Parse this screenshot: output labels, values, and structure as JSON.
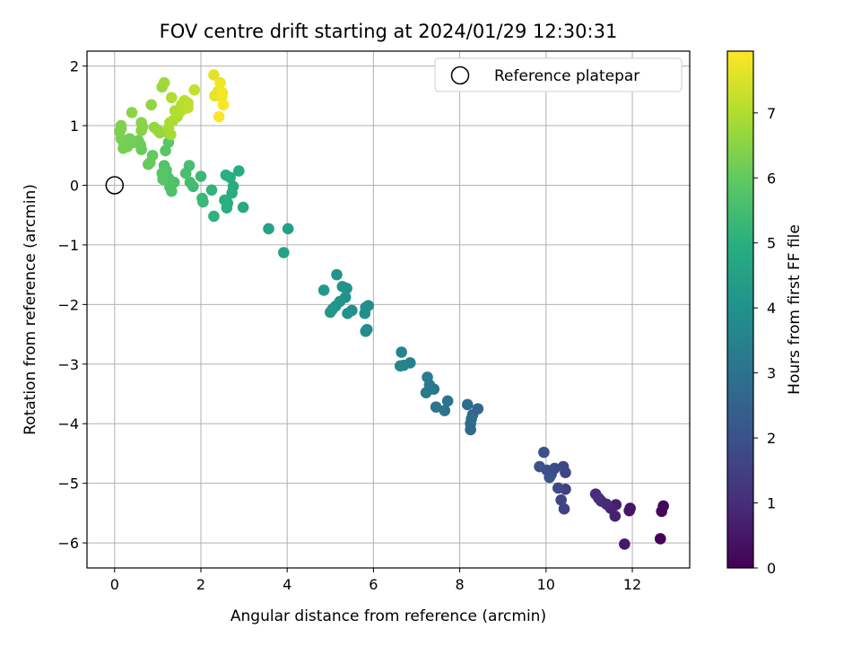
{
  "chart_data": {
    "type": "scatter",
    "title": "FOV centre drift starting at 2024/01/29 12:30:31",
    "xlabel": "Angular distance from reference (arcmin)",
    "ylabel": "Rotation from reference (arcmin)",
    "xlim": [
      -0.64,
      13.33
    ],
    "ylim": [
      -6.42,
      2.25
    ],
    "xticks": [
      0,
      2,
      4,
      6,
      8,
      10,
      12
    ],
    "yticks": [
      -6,
      -5,
      -4,
      -3,
      -2,
      -1,
      0,
      1,
      2
    ],
    "grid": true,
    "legend": {
      "label": "Reference platepar",
      "placement": "top-right",
      "marker": "open-circle"
    },
    "reference": {
      "x": 0,
      "y": 0
    },
    "colorbar": {
      "label": "Hours from first FF file",
      "colormap": "viridis",
      "range": [
        0,
        7.95
      ],
      "ticks": [
        0,
        1,
        2,
        3,
        4,
        5,
        6,
        7
      ]
    },
    "points": [
      {
        "x": 12.65,
        "y": -5.93,
        "c": 0.05
      },
      {
        "x": 12.68,
        "y": -5.47,
        "c": 0.1
      },
      {
        "x": 12.72,
        "y": -5.38,
        "c": 0.15
      },
      {
        "x": 11.95,
        "y": -5.42,
        "c": 0.4
      },
      {
        "x": 11.93,
        "y": -5.46,
        "c": 0.45
      },
      {
        "x": 11.82,
        "y": -6.02,
        "c": 0.55
      },
      {
        "x": 11.62,
        "y": -5.36,
        "c": 0.7
      },
      {
        "x": 11.6,
        "y": -5.55,
        "c": 0.75
      },
      {
        "x": 11.5,
        "y": -5.42,
        "c": 0.8
      },
      {
        "x": 11.4,
        "y": -5.35,
        "c": 0.9
      },
      {
        "x": 11.28,
        "y": -5.3,
        "c": 0.95
      },
      {
        "x": 11.15,
        "y": -5.18,
        "c": 1.0
      },
      {
        "x": 11.22,
        "y": -5.25,
        "c": 1.05
      },
      {
        "x": 10.45,
        "y": -5.1,
        "c": 1.5
      },
      {
        "x": 10.42,
        "y": -5.43,
        "c": 1.55
      },
      {
        "x": 10.35,
        "y": -5.28,
        "c": 1.6
      },
      {
        "x": 10.45,
        "y": -4.82,
        "c": 1.65
      },
      {
        "x": 10.4,
        "y": -4.72,
        "c": 1.7
      },
      {
        "x": 10.28,
        "y": -5.08,
        "c": 1.75
      },
      {
        "x": 10.2,
        "y": -4.75,
        "c": 1.8
      },
      {
        "x": 10.12,
        "y": -4.85,
        "c": 1.85
      },
      {
        "x": 10.02,
        "y": -4.78,
        "c": 1.9
      },
      {
        "x": 9.95,
        "y": -4.48,
        "c": 1.95
      },
      {
        "x": 9.85,
        "y": -4.72,
        "c": 2.0
      },
      {
        "x": 10.08,
        "y": -4.9,
        "c": 2.05
      },
      {
        "x": 8.42,
        "y": -3.75,
        "c": 2.6
      },
      {
        "x": 8.3,
        "y": -3.85,
        "c": 2.65
      },
      {
        "x": 8.25,
        "y": -4.0,
        "c": 2.7
      },
      {
        "x": 8.25,
        "y": -4.1,
        "c": 2.75
      },
      {
        "x": 8.18,
        "y": -3.68,
        "c": 2.8
      },
      {
        "x": 8.27,
        "y": -3.92,
        "c": 2.85
      },
      {
        "x": 7.72,
        "y": -3.62,
        "c": 3.0
      },
      {
        "x": 7.65,
        "y": -3.78,
        "c": 3.05
      },
      {
        "x": 7.45,
        "y": -3.72,
        "c": 3.1
      },
      {
        "x": 7.4,
        "y": -3.42,
        "c": 3.15
      },
      {
        "x": 7.3,
        "y": -3.35,
        "c": 3.2
      },
      {
        "x": 7.22,
        "y": -3.48,
        "c": 3.25
      },
      {
        "x": 7.25,
        "y": -3.22,
        "c": 3.3
      },
      {
        "x": 6.85,
        "y": -2.98,
        "c": 3.45
      },
      {
        "x": 6.7,
        "y": -3.02,
        "c": 3.5
      },
      {
        "x": 6.65,
        "y": -2.8,
        "c": 3.55
      },
      {
        "x": 6.62,
        "y": -3.03,
        "c": 3.6
      },
      {
        "x": 5.88,
        "y": -2.02,
        "c": 3.8
      },
      {
        "x": 5.85,
        "y": -2.42,
        "c": 3.82
      },
      {
        "x": 5.82,
        "y": -2.45,
        "c": 3.85
      },
      {
        "x": 5.8,
        "y": -2.15,
        "c": 3.88
      },
      {
        "x": 5.82,
        "y": -2.05,
        "c": 3.9
      },
      {
        "x": 5.5,
        "y": -2.1,
        "c": 3.95
      },
      {
        "x": 5.4,
        "y": -2.15,
        "c": 4.0
      },
      {
        "x": 5.35,
        "y": -1.88,
        "c": 4.03
      },
      {
        "x": 5.38,
        "y": -1.73,
        "c": 4.05
      },
      {
        "x": 5.28,
        "y": -1.7,
        "c": 4.08
      },
      {
        "x": 5.22,
        "y": -1.95,
        "c": 4.1
      },
      {
        "x": 5.15,
        "y": -1.5,
        "c": 4.12
      },
      {
        "x": 5.12,
        "y": -2.03,
        "c": 4.15
      },
      {
        "x": 5.05,
        "y": -2.08,
        "c": 4.18
      },
      {
        "x": 5.0,
        "y": -2.13,
        "c": 4.2
      },
      {
        "x": 4.85,
        "y": -1.76,
        "c": 4.22
      },
      {
        "x": 4.02,
        "y": -0.73,
        "c": 4.5
      },
      {
        "x": 3.92,
        "y": -1.13,
        "c": 4.55
      },
      {
        "x": 3.57,
        "y": -0.73,
        "c": 4.6
      },
      {
        "x": 2.98,
        "y": -0.37,
        "c": 4.8
      },
      {
        "x": 2.88,
        "y": 0.24,
        "c": 4.85
      },
      {
        "x": 2.75,
        "y": -0.02,
        "c": 4.88
      },
      {
        "x": 2.72,
        "y": -0.13,
        "c": 4.9
      },
      {
        "x": 2.68,
        "y": 0.13,
        "c": 4.93
      },
      {
        "x": 2.62,
        "y": -0.3,
        "c": 4.95
      },
      {
        "x": 2.6,
        "y": -0.38,
        "c": 4.97
      },
      {
        "x": 2.58,
        "y": 0.17,
        "c": 5.0
      },
      {
        "x": 2.55,
        "y": -0.25,
        "c": 5.02
      },
      {
        "x": 2.3,
        "y": -0.52,
        "c": 5.1
      },
      {
        "x": 2.25,
        "y": -0.08,
        "c": 5.15
      },
      {
        "x": 2.05,
        "y": -0.28,
        "c": 5.3
      },
      {
        "x": 2.03,
        "y": -0.22,
        "c": 5.32
      },
      {
        "x": 2.0,
        "y": 0.15,
        "c": 5.35
      },
      {
        "x": 1.82,
        "y": -0.02,
        "c": 5.45
      },
      {
        "x": 1.75,
        "y": 0.05,
        "c": 5.5
      },
      {
        "x": 1.73,
        "y": 0.33,
        "c": 5.52
      },
      {
        "x": 1.65,
        "y": 0.2,
        "c": 5.55
      },
      {
        "x": 1.38,
        "y": 0.05,
        "c": 5.65
      },
      {
        "x": 1.32,
        "y": -0.1,
        "c": 5.68
      },
      {
        "x": 1.28,
        "y": -0.03,
        "c": 5.7
      },
      {
        "x": 1.25,
        "y": 0.12,
        "c": 5.72
      },
      {
        "x": 1.2,
        "y": 0.25,
        "c": 5.75
      },
      {
        "x": 1.15,
        "y": 0.33,
        "c": 5.78
      },
      {
        "x": 1.12,
        "y": 0.1,
        "c": 5.8
      },
      {
        "x": 1.1,
        "y": 0.2,
        "c": 5.82
      },
      {
        "x": 1.18,
        "y": 0.58,
        "c": 5.85
      },
      {
        "x": 1.25,
        "y": 0.72,
        "c": 5.87
      },
      {
        "x": 1.2,
        "y": 0.9,
        "c": 5.9
      },
      {
        "x": 0.88,
        "y": 0.5,
        "c": 6.0
      },
      {
        "x": 0.82,
        "y": 0.38,
        "c": 6.02
      },
      {
        "x": 0.78,
        "y": 0.35,
        "c": 6.05
      },
      {
        "x": 0.62,
        "y": 0.6,
        "c": 6.1
      },
      {
        "x": 0.6,
        "y": 0.68,
        "c": 6.12
      },
      {
        "x": 0.55,
        "y": 0.75,
        "c": 6.15
      },
      {
        "x": 0.45,
        "y": 0.72,
        "c": 6.18
      },
      {
        "x": 0.35,
        "y": 0.78,
        "c": 6.2
      },
      {
        "x": 0.3,
        "y": 0.65,
        "c": 6.22
      },
      {
        "x": 0.22,
        "y": 0.7,
        "c": 6.25
      },
      {
        "x": 0.2,
        "y": 0.62,
        "c": 6.28
      },
      {
        "x": 0.15,
        "y": 0.78,
        "c": 6.3
      },
      {
        "x": 0.12,
        "y": 0.9,
        "c": 6.32
      },
      {
        "x": 0.15,
        "y": 0.95,
        "c": 6.35
      },
      {
        "x": 0.15,
        "y": 1.0,
        "c": 6.38
      },
      {
        "x": 0.62,
        "y": 0.92,
        "c": 6.45
      },
      {
        "x": 0.65,
        "y": 0.98,
        "c": 6.47
      },
      {
        "x": 0.62,
        "y": 1.05,
        "c": 6.5
      },
      {
        "x": 0.4,
        "y": 1.22,
        "c": 6.55
      },
      {
        "x": 0.85,
        "y": 1.35,
        "c": 6.6
      },
      {
        "x": 0.92,
        "y": 0.97,
        "c": 6.65
      },
      {
        "x": 1.0,
        "y": 0.92,
        "c": 6.67
      },
      {
        "x": 1.05,
        "y": 0.88,
        "c": 6.7
      },
      {
        "x": 1.1,
        "y": 1.65,
        "c": 6.75
      },
      {
        "x": 1.15,
        "y": 1.72,
        "c": 6.78
      },
      {
        "x": 1.25,
        "y": 0.95,
        "c": 6.85
      },
      {
        "x": 1.3,
        "y": 0.85,
        "c": 6.87
      },
      {
        "x": 1.28,
        "y": 1.05,
        "c": 6.9
      },
      {
        "x": 1.35,
        "y": 1.08,
        "c": 6.93
      },
      {
        "x": 1.45,
        "y": 1.15,
        "c": 6.95
      },
      {
        "x": 1.4,
        "y": 1.25,
        "c": 6.97
      },
      {
        "x": 1.32,
        "y": 1.47,
        "c": 7.0
      },
      {
        "x": 1.5,
        "y": 1.22,
        "c": 7.02
      },
      {
        "x": 1.55,
        "y": 1.35,
        "c": 7.05
      },
      {
        "x": 1.6,
        "y": 1.28,
        "c": 7.08
      },
      {
        "x": 1.62,
        "y": 1.42,
        "c": 7.1
      },
      {
        "x": 1.7,
        "y": 1.38,
        "c": 7.13
      },
      {
        "x": 1.7,
        "y": 1.3,
        "c": 7.15
      },
      {
        "x": 1.85,
        "y": 1.6,
        "c": 7.25
      },
      {
        "x": 2.3,
        "y": 1.85,
        "c": 7.6
      },
      {
        "x": 2.32,
        "y": 1.5,
        "c": 7.65
      },
      {
        "x": 2.4,
        "y": 1.58,
        "c": 7.7
      },
      {
        "x": 2.45,
        "y": 1.72,
        "c": 7.75
      },
      {
        "x": 2.48,
        "y": 1.48,
        "c": 7.8
      },
      {
        "x": 2.5,
        "y": 1.55,
        "c": 7.85
      },
      {
        "x": 2.52,
        "y": 1.35,
        "c": 7.88
      },
      {
        "x": 2.42,
        "y": 1.15,
        "c": 7.9
      }
    ]
  }
}
